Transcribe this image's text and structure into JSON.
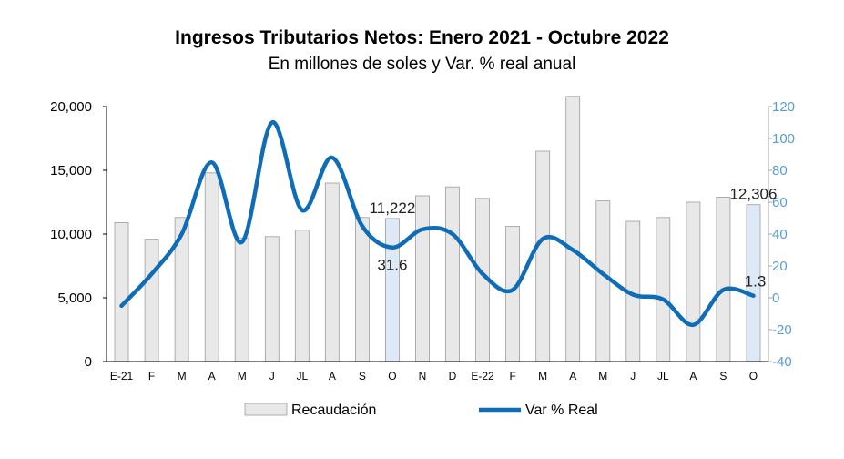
{
  "title": "Ingresos Tributarios Netos: Enero 2021 - Octubre 2022",
  "subtitle": "En millones de soles y Var. % real anual",
  "chart_data": {
    "type": "bar",
    "categories": [
      "E-21",
      "F",
      "M",
      "A",
      "M",
      "J",
      "JL",
      "A",
      "S",
      "O",
      "N",
      "D",
      "E-22",
      "F",
      "M",
      "A",
      "M",
      "J",
      "JL",
      "A",
      "S",
      "O"
    ],
    "series": [
      {
        "name": "Recaudación",
        "type": "bar",
        "axis": "left",
        "color": "#e8e8e8",
        "values": [
          10900,
          9600,
          11300,
          14800,
          9700,
          9800,
          10300,
          14000,
          11300,
          11222,
          13000,
          13700,
          12800,
          10600,
          16500,
          20800,
          12600,
          11000,
          11300,
          12500,
          12900,
          12306
        ],
        "highlighted_indices": [
          9,
          21
        ],
        "highlight_color": "#dde9f6"
      },
      {
        "name": "Var % Real",
        "type": "line",
        "axis": "right",
        "color": "#0f6cb6",
        "values": [
          -5,
          15,
          40,
          85,
          35,
          110,
          55,
          88,
          45,
          31.6,
          43,
          40,
          15,
          5,
          37,
          30,
          15,
          2,
          -1,
          -17,
          5,
          1.3
        ]
      }
    ],
    "data_labels": [
      {
        "series": "Recaudación",
        "index": 9,
        "text": "11,222"
      },
      {
        "series": "Var % Real",
        "index": 9,
        "text": "31.6"
      },
      {
        "series": "Recaudación",
        "index": 21,
        "text": "12,306"
      },
      {
        "series": "Var % Real",
        "index": 21,
        "text": "1.3"
      }
    ],
    "y_left": {
      "min": 0,
      "max": 20000,
      "ticks": [
        "0",
        "5,000",
        "10,000",
        "15,000",
        "20,000"
      ],
      "tick_values": [
        0,
        5000,
        10000,
        15000,
        20000
      ],
      "color": "#000000"
    },
    "y_right": {
      "min": -40,
      "max": 120,
      "ticks": [
        "-40",
        "-20",
        "0",
        "20",
        "40",
        "60",
        "80",
        "100",
        "120"
      ],
      "tick_values": [
        -40,
        -20,
        0,
        20,
        40,
        60,
        80,
        100,
        120
      ],
      "color": "#5b9bd5"
    },
    "legend": {
      "position": "bottom",
      "items": [
        "Recaudación",
        "Var % Real"
      ]
    },
    "grid": false
  }
}
